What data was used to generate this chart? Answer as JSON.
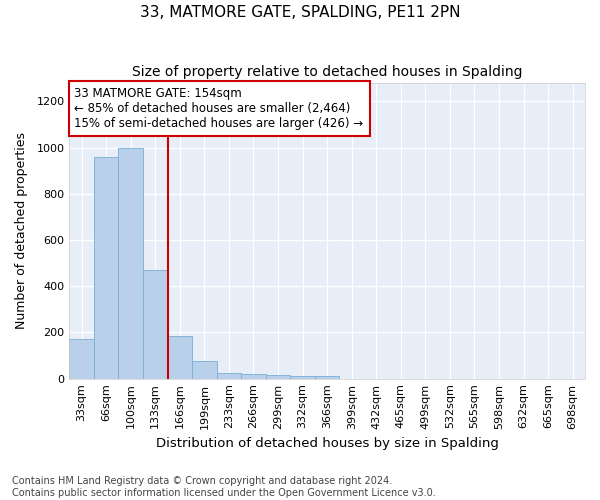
{
  "title": "33, MATMORE GATE, SPALDING, PE11 2PN",
  "subtitle": "Size of property relative to detached houses in Spalding",
  "xlabel": "Distribution of detached houses by size in Spalding",
  "ylabel": "Number of detached properties",
  "categories": [
    "33sqm",
    "66sqm",
    "100sqm",
    "133sqm",
    "166sqm",
    "199sqm",
    "233sqm",
    "266sqm",
    "299sqm",
    "332sqm",
    "366sqm",
    "399sqm",
    "432sqm",
    "465sqm",
    "499sqm",
    "532sqm",
    "565sqm",
    "598sqm",
    "632sqm",
    "665sqm",
    "698sqm"
  ],
  "values": [
    170,
    960,
    1000,
    470,
    185,
    75,
    25,
    20,
    15,
    10,
    10,
    0,
    0,
    0,
    0,
    0,
    0,
    0,
    0,
    0,
    0
  ],
  "bar_color": "#b8d0ea",
  "bar_edge_color": "#7aadd4",
  "highlight_line_color": "#cc0000",
  "annotation_text": "33 MATMORE GATE: 154sqm\n← 85% of detached houses are smaller (2,464)\n15% of semi-detached houses are larger (426) →",
  "annotation_box_color": "#ffffff",
  "annotation_box_edge_color": "#cc0000",
  "ylim": [
    0,
    1280
  ],
  "yticks": [
    0,
    200,
    400,
    600,
    800,
    1000,
    1200
  ],
  "plot_bg_color": "#e8eef8",
  "fig_bg_color": "#ffffff",
  "grid_color": "#ffffff",
  "footer_text": "Contains HM Land Registry data © Crown copyright and database right 2024.\nContains public sector information licensed under the Open Government Licence v3.0.",
  "title_fontsize": 11,
  "subtitle_fontsize": 10,
  "xlabel_fontsize": 9.5,
  "ylabel_fontsize": 9,
  "annotation_fontsize": 8.5,
  "footer_fontsize": 7,
  "tick_fontsize": 8
}
